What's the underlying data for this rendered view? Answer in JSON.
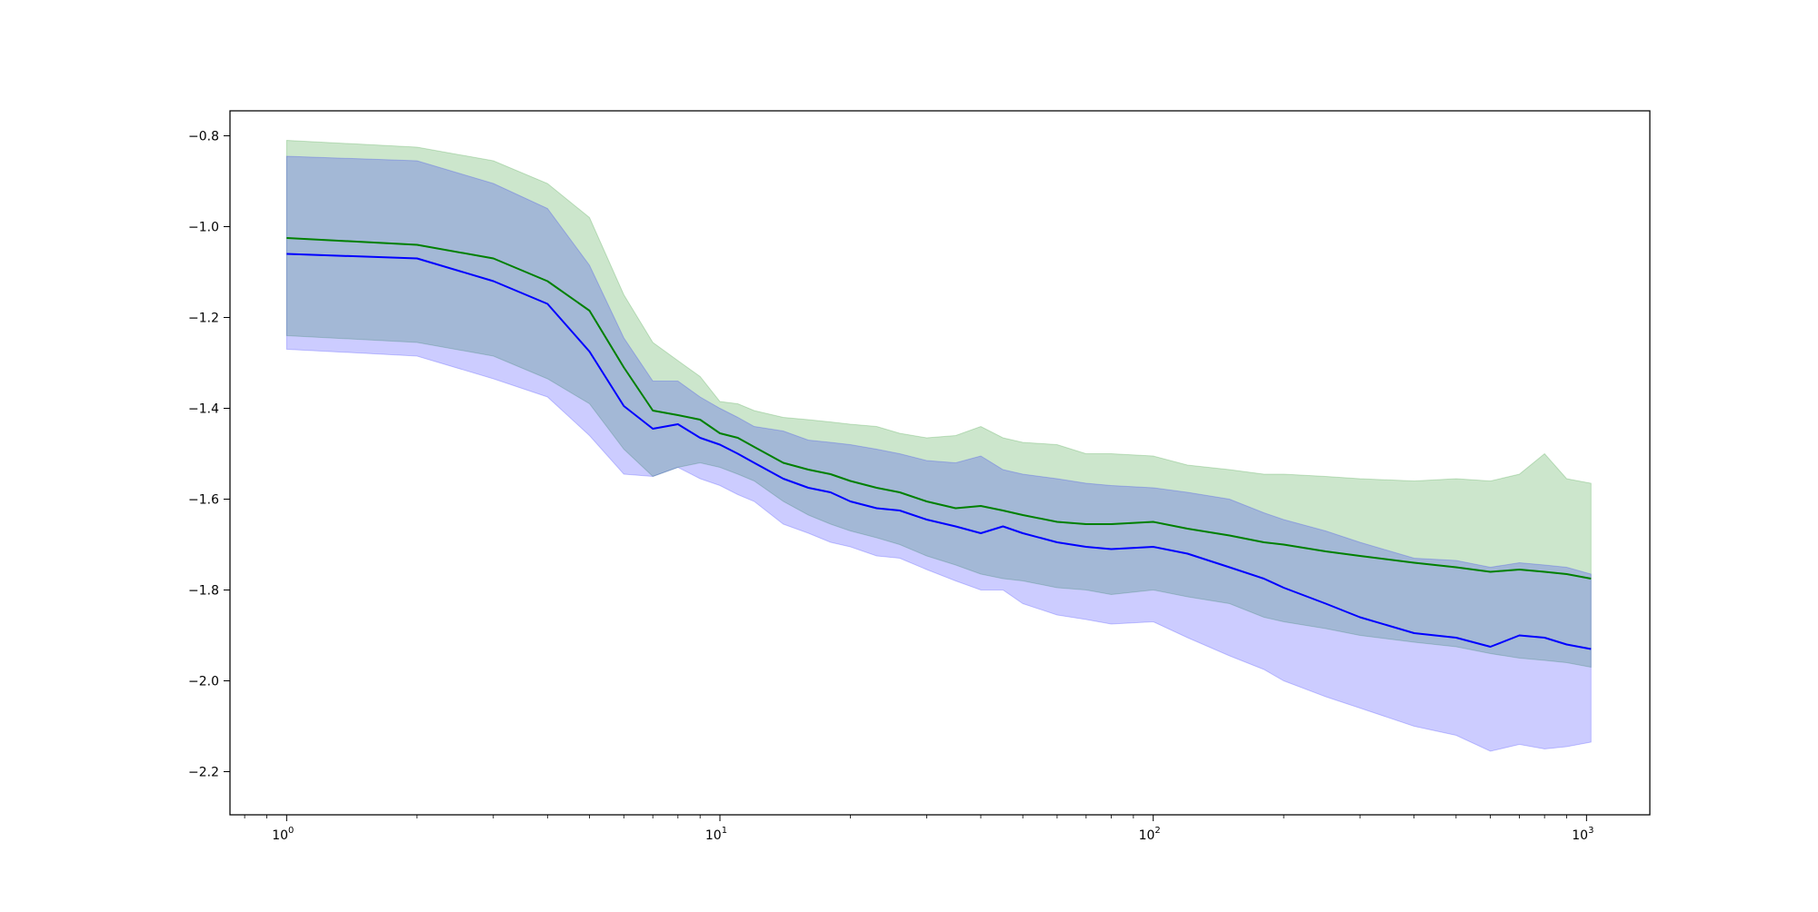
{
  "chart_data": {
    "type": "line",
    "title": "",
    "xlabel": "",
    "ylabel": "",
    "xscale": "log",
    "xlim": [
      0.74,
      1400
    ],
    "ylim": [
      -2.295,
      -0.745
    ],
    "grid": false,
    "legend": "none",
    "x_ticks": [
      {
        "value": 1,
        "base": "10",
        "exp": "0"
      },
      {
        "value": 10,
        "base": "10",
        "exp": "1"
      },
      {
        "value": 100,
        "base": "10",
        "exp": "2"
      },
      {
        "value": 1000,
        "base": "10",
        "exp": "3"
      }
    ],
    "y_ticks": [
      {
        "value": -0.8,
        "label": "−0.8"
      },
      {
        "value": -1.0,
        "label": "−1.0"
      },
      {
        "value": -1.2,
        "label": "−1.2"
      },
      {
        "value": -1.4,
        "label": "−1.4"
      },
      {
        "value": -1.6,
        "label": "−1.6"
      },
      {
        "value": -1.8,
        "label": "−1.8"
      },
      {
        "value": -2.0,
        "label": "−2.0"
      },
      {
        "value": -2.2,
        "label": "−2.2"
      }
    ],
    "series": [
      {
        "color": "#008000",
        "band_color": "#008000",
        "band_opacity": 0.2,
        "x": [
          1,
          2,
          3,
          4,
          5,
          6,
          7,
          8,
          9,
          10,
          11,
          12,
          14,
          16,
          18,
          20,
          23,
          26,
          30,
          35,
          40,
          45,
          50,
          60,
          70,
          80,
          100,
          120,
          150,
          180,
          200,
          250,
          300,
          400,
          500,
          600,
          700,
          800,
          900,
          1024
        ],
        "mean": [
          -1.025,
          -1.04,
          -1.07,
          -1.12,
          -1.185,
          -1.31,
          -1.405,
          -1.415,
          -1.425,
          -1.455,
          -1.465,
          -1.485,
          -1.52,
          -1.535,
          -1.545,
          -1.56,
          -1.575,
          -1.585,
          -1.605,
          -1.62,
          -1.615,
          -1.625,
          -1.635,
          -1.65,
          -1.655,
          -1.655,
          -1.65,
          -1.665,
          -1.68,
          -1.695,
          -1.7,
          -1.715,
          -1.725,
          -1.74,
          -1.75,
          -1.76,
          -1.755,
          -1.76,
          -1.765,
          -1.775
        ],
        "upper": [
          -0.81,
          -0.825,
          -0.855,
          -0.905,
          -0.98,
          -1.15,
          -1.255,
          -1.295,
          -1.33,
          -1.385,
          -1.39,
          -1.405,
          -1.42,
          -1.425,
          -1.43,
          -1.435,
          -1.44,
          -1.455,
          -1.465,
          -1.46,
          -1.44,
          -1.465,
          -1.475,
          -1.48,
          -1.5,
          -1.5,
          -1.505,
          -1.525,
          -1.535,
          -1.545,
          -1.545,
          -1.55,
          -1.555,
          -1.56,
          -1.555,
          -1.56,
          -1.545,
          -1.5,
          -1.555,
          -1.565
        ],
        "lower": [
          -1.24,
          -1.255,
          -1.285,
          -1.335,
          -1.39,
          -1.49,
          -1.55,
          -1.53,
          -1.52,
          -1.53,
          -1.545,
          -1.56,
          -1.605,
          -1.635,
          -1.655,
          -1.67,
          -1.685,
          -1.7,
          -1.725,
          -1.745,
          -1.765,
          -1.775,
          -1.78,
          -1.795,
          -1.8,
          -1.81,
          -1.8,
          -1.815,
          -1.83,
          -1.86,
          -1.87,
          -1.885,
          -1.9,
          -1.915,
          -1.925,
          -1.94,
          -1.95,
          -1.955,
          -1.96,
          -1.97
        ]
      },
      {
        "color": "#0000ff",
        "band_color": "#0000ff",
        "band_opacity": 0.2,
        "x": [
          1,
          2,
          3,
          4,
          5,
          6,
          7,
          8,
          9,
          10,
          11,
          12,
          14,
          16,
          18,
          20,
          23,
          26,
          30,
          35,
          40,
          45,
          50,
          60,
          70,
          80,
          100,
          120,
          150,
          180,
          200,
          250,
          300,
          400,
          500,
          600,
          700,
          800,
          900,
          1024
        ],
        "mean": [
          -1.06,
          -1.07,
          -1.12,
          -1.17,
          -1.275,
          -1.395,
          -1.445,
          -1.435,
          -1.465,
          -1.48,
          -1.5,
          -1.52,
          -1.555,
          -1.575,
          -1.585,
          -1.605,
          -1.62,
          -1.625,
          -1.645,
          -1.66,
          -1.675,
          -1.66,
          -1.675,
          -1.695,
          -1.705,
          -1.71,
          -1.705,
          -1.72,
          -1.75,
          -1.775,
          -1.795,
          -1.83,
          -1.86,
          -1.895,
          -1.905,
          -1.925,
          -1.9,
          -1.905,
          -1.92,
          -1.93
        ],
        "upper": [
          -0.845,
          -0.855,
          -0.905,
          -0.96,
          -1.085,
          -1.245,
          -1.34,
          -1.34,
          -1.375,
          -1.4,
          -1.42,
          -1.44,
          -1.45,
          -1.47,
          -1.475,
          -1.48,
          -1.49,
          -1.5,
          -1.515,
          -1.52,
          -1.505,
          -1.535,
          -1.545,
          -1.555,
          -1.565,
          -1.57,
          -1.575,
          -1.585,
          -1.6,
          -1.63,
          -1.645,
          -1.67,
          -1.695,
          -1.73,
          -1.735,
          -1.75,
          -1.74,
          -1.745,
          -1.75,
          -1.765
        ],
        "lower": [
          -1.27,
          -1.285,
          -1.335,
          -1.375,
          -1.46,
          -1.545,
          -1.55,
          -1.53,
          -1.555,
          -1.57,
          -1.59,
          -1.605,
          -1.655,
          -1.675,
          -1.695,
          -1.705,
          -1.725,
          -1.73,
          -1.755,
          -1.78,
          -1.8,
          -1.8,
          -1.83,
          -1.855,
          -1.865,
          -1.875,
          -1.87,
          -1.905,
          -1.945,
          -1.975,
          -2.0,
          -2.035,
          -2.06,
          -2.1,
          -2.12,
          -2.155,
          -2.14,
          -2.15,
          -2.145,
          -2.135
        ]
      }
    ]
  }
}
